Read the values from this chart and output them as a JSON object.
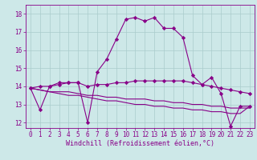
{
  "xlabel": "Windchill (Refroidissement éolien,°C)",
  "bg_color": "#cde8e8",
  "grid_color": "#aacccc",
  "line_color": "#880088",
  "xlim": [
    -0.5,
    23.5
  ],
  "ylim": [
    11.7,
    18.5
  ],
  "yticks": [
    12,
    13,
    14,
    15,
    16,
    17,
    18
  ],
  "xticks": [
    0,
    1,
    2,
    3,
    4,
    5,
    6,
    7,
    8,
    9,
    10,
    11,
    12,
    13,
    14,
    15,
    16,
    17,
    18,
    19,
    20,
    21,
    22,
    23
  ],
  "series": [
    [
      13.9,
      12.7,
      14.0,
      14.2,
      14.2,
      14.2,
      12.0,
      14.8,
      15.5,
      16.6,
      17.7,
      17.8,
      17.6,
      17.8,
      17.2,
      17.2,
      16.7,
      14.6,
      14.1,
      14.5,
      13.6,
      11.8,
      12.9,
      12.9
    ],
    [
      13.9,
      14.0,
      14.0,
      14.1,
      14.2,
      14.2,
      14.0,
      14.1,
      14.1,
      14.2,
      14.2,
      14.3,
      14.3,
      14.3,
      14.3,
      14.3,
      14.3,
      14.2,
      14.1,
      14.0,
      13.9,
      13.8,
      13.7,
      13.6
    ],
    [
      13.9,
      13.8,
      13.7,
      13.7,
      13.7,
      13.6,
      13.5,
      13.5,
      13.4,
      13.4,
      13.3,
      13.3,
      13.3,
      13.2,
      13.2,
      13.1,
      13.1,
      13.0,
      13.0,
      12.9,
      12.9,
      12.8,
      12.8,
      12.8
    ],
    [
      13.9,
      13.8,
      13.7,
      13.6,
      13.5,
      13.5,
      13.4,
      13.3,
      13.2,
      13.2,
      13.1,
      13.0,
      13.0,
      12.9,
      12.9,
      12.8,
      12.8,
      12.7,
      12.7,
      12.6,
      12.6,
      12.5,
      12.5,
      12.9
    ]
  ],
  "series_markers": [
    true,
    true,
    false,
    false
  ],
  "marker_style": "D",
  "marker_size": 2.2,
  "line_width": 0.8,
  "tick_fontsize": 5.5,
  "xlabel_fontsize": 6.0
}
